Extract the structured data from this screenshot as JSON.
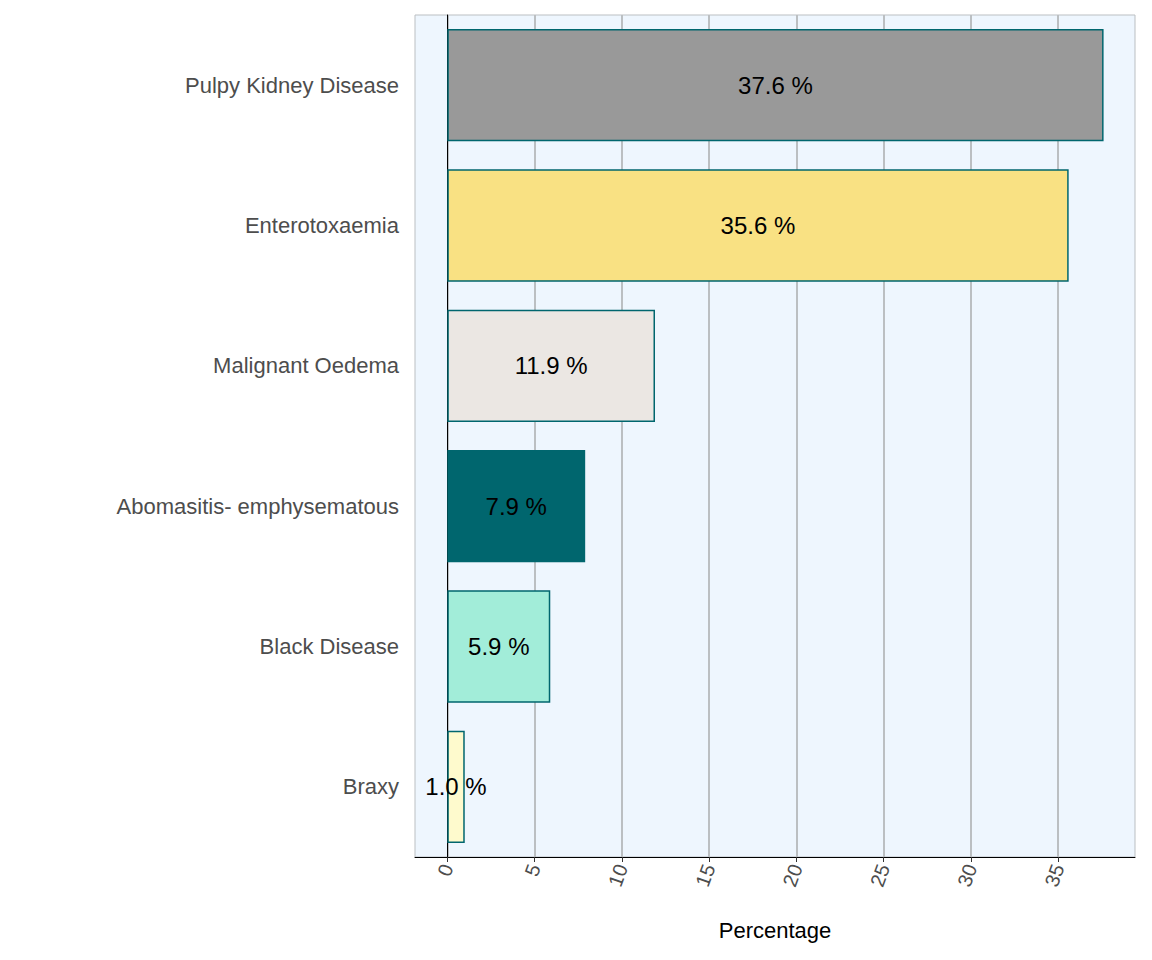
{
  "chart_data": {
    "type": "bar",
    "orientation": "horizontal",
    "categories": [
      "Pulpy Kidney Disease",
      "Enterotoxaemia",
      "Malignant Oedema",
      "Abomasitis- emphysematous",
      "Black Disease",
      "Braxy"
    ],
    "values": [
      37.6,
      35.6,
      11.9,
      7.9,
      5.9,
      1.0
    ],
    "value_labels": [
      "37.6 %",
      "35.6 %",
      "11.9 %",
      "7.9 %",
      "5.9 %",
      "1.0 %"
    ],
    "colors": [
      "#999999",
      "#F9E183",
      "#EBE7E3",
      "#00666E",
      "#A2EDD9",
      "#FEFACD"
    ],
    "data_labels": true,
    "xlabel": "Percentage",
    "xlim": [
      -1.85,
      39.4
    ],
    "xticks": [
      0,
      5,
      10,
      15,
      20,
      25,
      30,
      35
    ],
    "grid": true
  }
}
